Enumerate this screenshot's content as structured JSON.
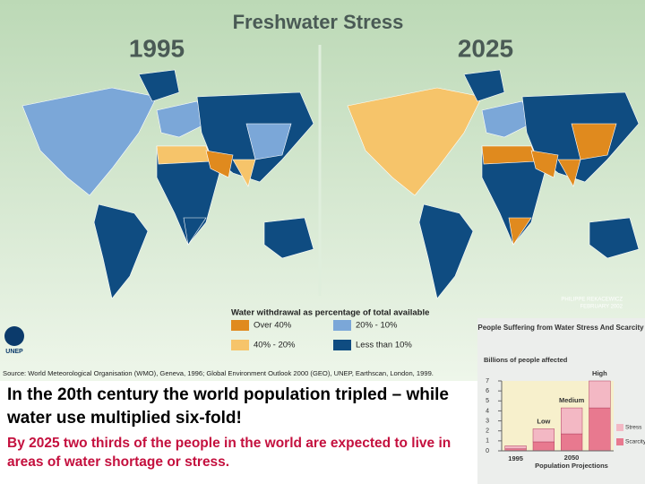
{
  "header": {
    "title": "Freshwater Stress"
  },
  "maps": [
    {
      "year": "1995"
    },
    {
      "year": "2025"
    }
  ],
  "legend": {
    "title": "Water withdrawal as percentage of total available",
    "items": [
      "Over 40%",
      "40% - 20%",
      "20% - 10%",
      "Less than 10%"
    ]
  },
  "credit": {
    "author": "PHILIPPE REKACEWICZ",
    "date": "FEBRUARY 2002",
    "logo": "UNEP"
  },
  "source": "Source: World Meteorological Organisation (WMO), Geneva, 1996; Global Environment Outlook 2000 (GEO), UNEP, Earthscan, London, 1999.",
  "body": {
    "headline": "In the 20th century the world population tripled – while water use multiplied six-fold!",
    "subtext": "By 2025 two thirds of the people in the world are expected to live in areas of water shortage or stress."
  },
  "chart_data": {
    "type": "bar",
    "stacked": true,
    "title": "People Suffering from Water Stress And Scarcity",
    "y_label": "Billions of people affected",
    "categories": [
      "1995",
      "Low",
      "Medium",
      "High"
    ],
    "x_group_year": "2050",
    "x_label": "Population Projections",
    "series": [
      {
        "name": "Scarcity",
        "color": "#e8798f",
        "values": [
          0.2,
          0.9,
          1.7,
          4.3
        ]
      },
      {
        "name": "Stress",
        "color": "#f3b8c4",
        "values": [
          0.3,
          1.3,
          2.6,
          2.7
        ]
      }
    ],
    "ylim": [
      0,
      7
    ],
    "yticks": [
      0,
      1,
      2,
      3,
      4,
      5,
      6,
      7
    ]
  }
}
